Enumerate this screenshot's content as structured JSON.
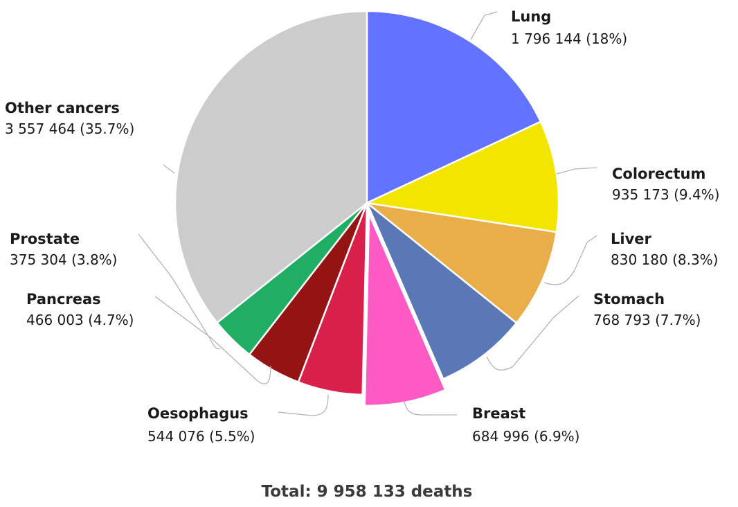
{
  "chart_data": {
    "type": "pie",
    "title": "",
    "total_label": "Total: 9 958 133 deaths",
    "slices": [
      {
        "name": "Lung",
        "value": 1796144,
        "value_label": "1 796 144 (18%)",
        "percent": 18.0,
        "color": "#6273ff"
      },
      {
        "name": "Colorectum",
        "value": 935173,
        "value_label": "935 173 (9.4%)",
        "percent": 9.4,
        "color": "#f2e600"
      },
      {
        "name": "Liver",
        "value": 830180,
        "value_label": "830 180 (8.3%)",
        "percent": 8.3,
        "color": "#e9ae4a"
      },
      {
        "name": "Stomach",
        "value": 768793,
        "value_label": "768 793 (7.7%)",
        "percent": 7.7,
        "color": "#5a78b6"
      },
      {
        "name": "Breast",
        "value": 684996,
        "value_label": "684 996 (6.9%)",
        "percent": 6.9,
        "color": "#fe5ac4",
        "exploded": true
      },
      {
        "name": "Oesophagus",
        "value": 544076,
        "value_label": "544 076 (5.5%)",
        "percent": 5.5,
        "color": "#d8204a"
      },
      {
        "name": "Pancreas",
        "value": 466003,
        "value_label": "466 003 (4.7%)",
        "percent": 4.7,
        "color": "#941414"
      },
      {
        "name": "Prostate",
        "value": 375304,
        "value_label": "375 304 (3.8%)",
        "percent": 3.8,
        "color": "#1fae64"
      },
      {
        "name": "Other cancers",
        "value": 3557464,
        "value_label": "3 557 464 (35.7%)",
        "percent": 35.7,
        "color": "#cccccc"
      }
    ]
  }
}
